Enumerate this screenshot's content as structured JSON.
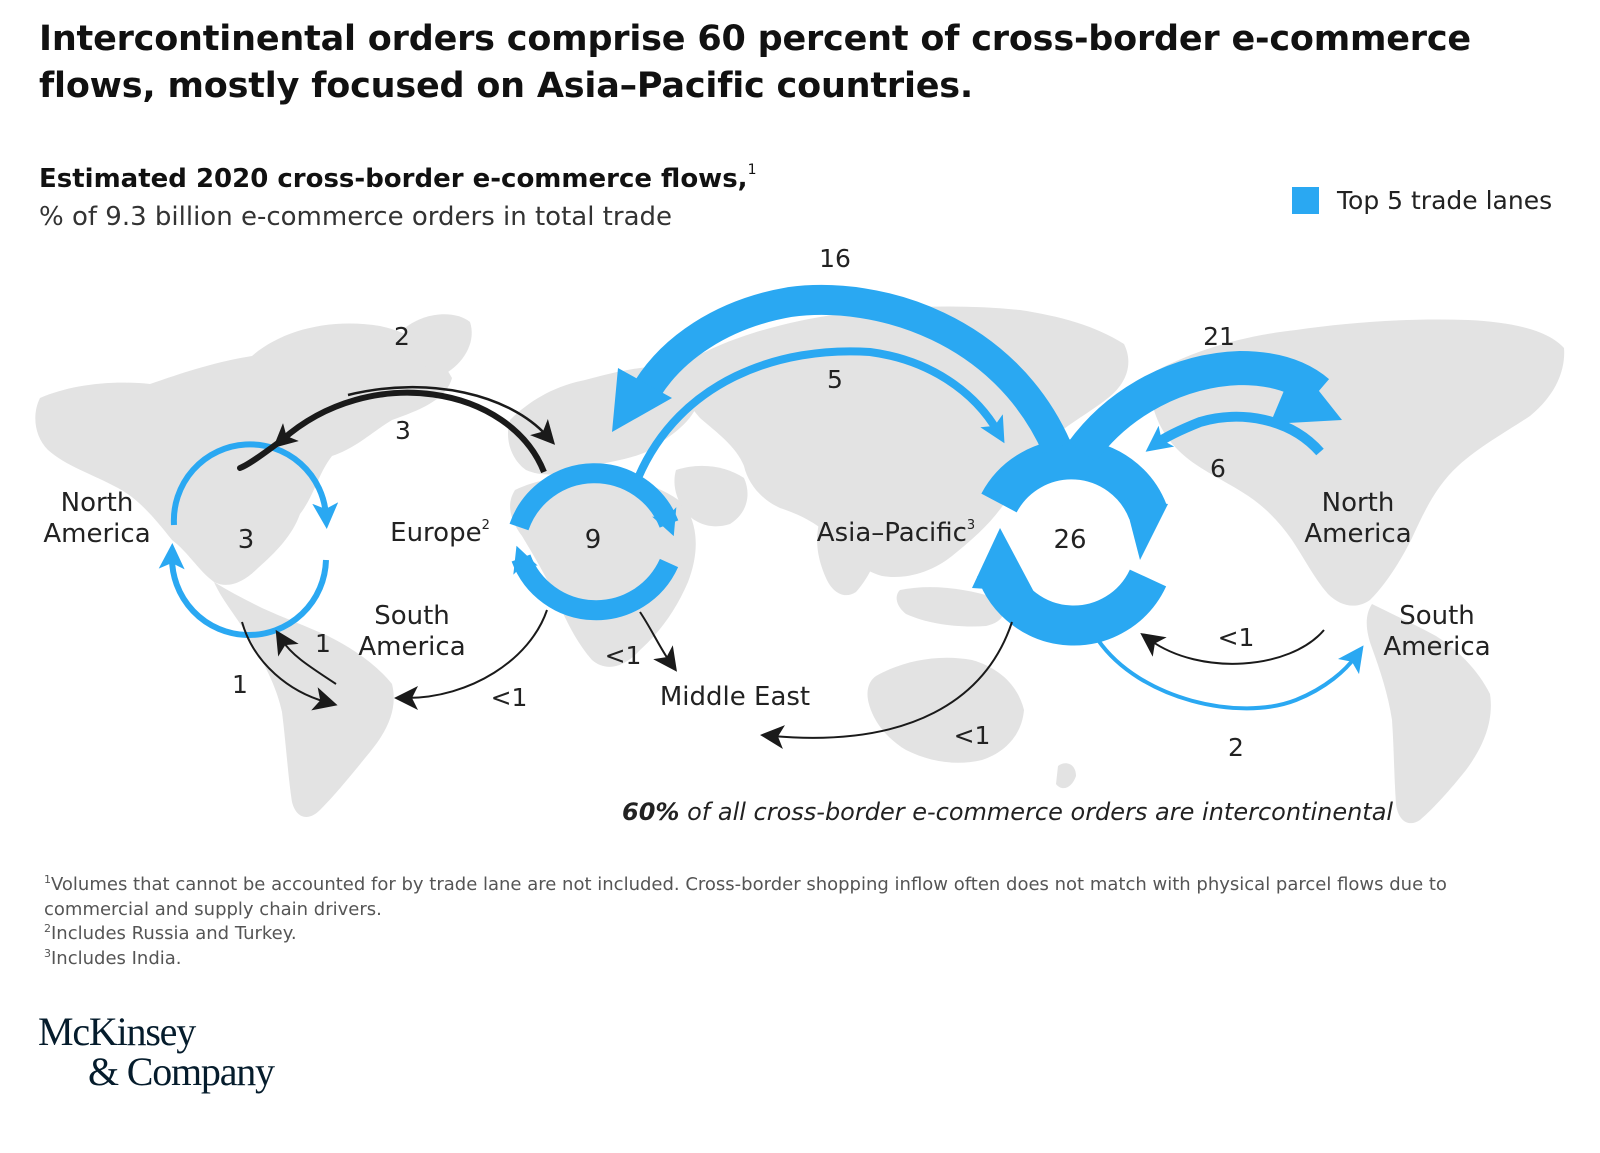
{
  "headline": "Intercontinental orders comprise 60 percent of cross-border e-commerce flows, mostly focused on Asia–Pacific countries.",
  "subtitle": {
    "text": "Estimated 2020 cross-border e-commerce flows,",
    "footnote_ref": "1"
  },
  "units": "% of 9.3 billion e-commerce orders in total trade",
  "legend": {
    "label": "Top 5 trade lanes",
    "color": "#2aa8f2"
  },
  "colors": {
    "highlight": "#2aa8f2",
    "other": "#1a1a1a",
    "map": "#e3e3e3"
  },
  "regions": {
    "na_left": [
      "North",
      "America"
    ],
    "europe": "Europe",
    "europe_ref": "2",
    "sa_left": [
      "South",
      "America"
    ],
    "middle_east": "Middle East",
    "asia_pacific": "Asia–Pacific",
    "asia_pacific_ref": "3",
    "na_right": [
      "North",
      "America"
    ],
    "sa_right": [
      "South",
      "America"
    ]
  },
  "intraregional": {
    "north_america": "3",
    "europe": "9",
    "asia_pacific": "26"
  },
  "flows": {
    "na_to_europe": "2",
    "europe_to_na": "3",
    "na_to_sa": "1",
    "sa_to_na": "1",
    "europe_to_sa": "<1",
    "europe_to_me": "<1",
    "asia_to_europe": "16",
    "europe_to_asia": "5",
    "asia_to_na": "21",
    "na_to_asia": "6",
    "sa_to_asia": "<1",
    "asia_to_sa": "2",
    "asia_to_me": "<1"
  },
  "callout": {
    "bold": "60%",
    "text": "of all cross-border e-commerce orders are intercontinental"
  },
  "footnotes": [
    {
      "ref": "1",
      "text": "Volumes that cannot be accounted for by trade lane are not included. Cross-border shopping inflow often does not match with physical parcel flows due to commercial and supply chain drivers."
    },
    {
      "ref": "2",
      "text": "Includes Russia and Turkey."
    },
    {
      "ref": "3",
      "text": "Includes India."
    }
  ],
  "logo": [
    "McKinsey",
    "& Company"
  ]
}
